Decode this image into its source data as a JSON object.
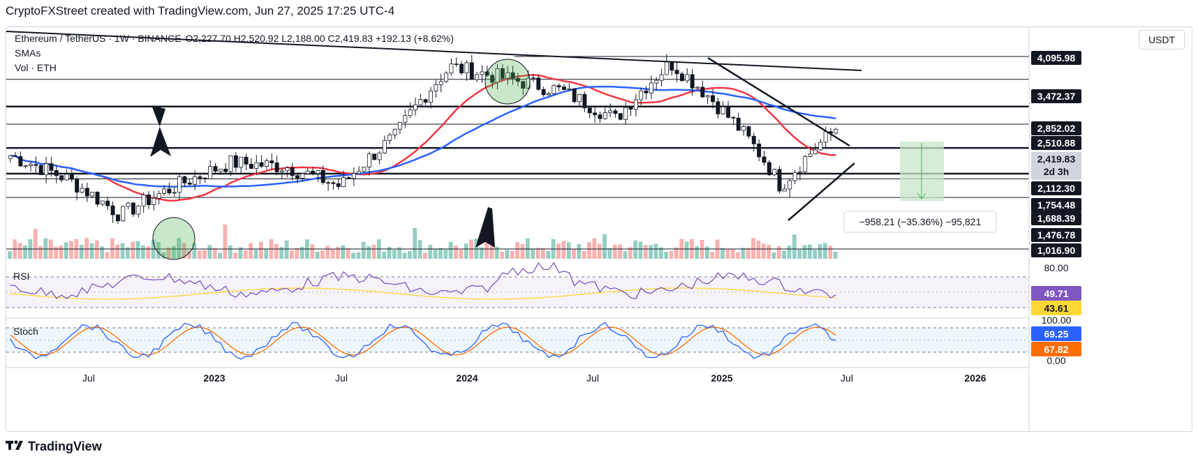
{
  "header": {
    "text": "CryptoFXStreet created with TradingView.com, Jun 27, 2025 17:25 UTC-4"
  },
  "legend": {
    "symbol": "Ethereum / TetherUS · 1W · BINANCE",
    "open": "O2,227.70",
    "high": "H2,520.92",
    "low": "L2,188.00",
    "close": "C2,419.83",
    "change": "+192.13 (+8.62%)",
    "indicator1": "SMAs",
    "indicator2": "Vol · ETH"
  },
  "currency_button": "USDT",
  "measure_label": "−958.21 (−35.36%) −95,821",
  "price_labels": [
    {
      "text": "4,095.98",
      "style": "dark"
    },
    {
      "text": "3,472.37",
      "style": "dark"
    },
    {
      "text": "2,852.02",
      "style": "dark"
    },
    {
      "text": "2,510.88",
      "style": "dark"
    },
    {
      "text": "2,419.83",
      "style": "current"
    },
    {
      "text": "2d 3h",
      "style": "current"
    },
    {
      "text": "2,112.30",
      "style": "dark"
    },
    {
      "text": "1,754.48",
      "style": "dark"
    },
    {
      "text": "1,688.39",
      "style": "dark"
    },
    {
      "text": "1,476.78",
      "style": "dark"
    },
    {
      "text": "1,016.90",
      "style": "dark"
    }
  ],
  "rsi": {
    "label": "RSI",
    "axis_top": "80.00",
    "value": "49.71",
    "ma_value": "43.61"
  },
  "stoch": {
    "label": "Stoch",
    "axis_top": "100.00",
    "k_value": "69.25",
    "d_value": "67.82",
    "axis_bottom": "0.00"
  },
  "x_axis": [
    "Jul",
    "2023",
    "Jul",
    "2024",
    "Jul",
    "2025",
    "Jul",
    "2026"
  ],
  "footer": {
    "brand": "TradingView"
  },
  "colors": {
    "sma_fast": "#f23645",
    "sma_slow": "#2962ff",
    "vol_up": "#89c9bd",
    "vol_down": "#f7a9a7",
    "rsi": "#7e57c2",
    "rsi_ma": "#fdd835",
    "stoch_k": "#2962ff",
    "stoch_d": "#ff6d00",
    "target_box": "#c8e6c9"
  },
  "chart_data": {
    "type": "line",
    "title": "Ethereum / TetherUS · 1W · BINANCE",
    "x": [
      "2022-05",
      "2022-07",
      "2022-10",
      "2023-01",
      "2023-04",
      "2023-07",
      "2023-10",
      "2024-01",
      "2024-03",
      "2024-05",
      "2024-07",
      "2024-10",
      "2024-12",
      "2025-02",
      "2025-04",
      "2025-06"
    ],
    "series": [
      {
        "name": "Close",
        "values": [
          2000,
          1700,
          1300,
          1600,
          1900,
          1850,
          1600,
          2300,
          3800,
          3500,
          3200,
          2600,
          3900,
          2700,
          1600,
          2419.83
        ]
      }
    ],
    "horizontal_levels": [
      4095.98,
      3472.37,
      2852.02,
      2510.88,
      2112.3,
      1754.48,
      1688.39,
      1476.78,
      1016.9
    ],
    "current_price": 2419.83,
    "ohlc_last": {
      "open": 2227.7,
      "high": 2520.92,
      "low": 2188.0,
      "close": 2419.83,
      "change": 192.13,
      "change_pct": 8.62
    },
    "measure": {
      "delta": -958.21,
      "delta_pct": -35.36,
      "ticks": -95821
    },
    "rsi_last": 49.71,
    "rsi_ma_last": 43.61,
    "stoch_k_last": 69.25,
    "stoch_d_last": 67.82,
    "ylim": [
      900,
      4300
    ]
  }
}
